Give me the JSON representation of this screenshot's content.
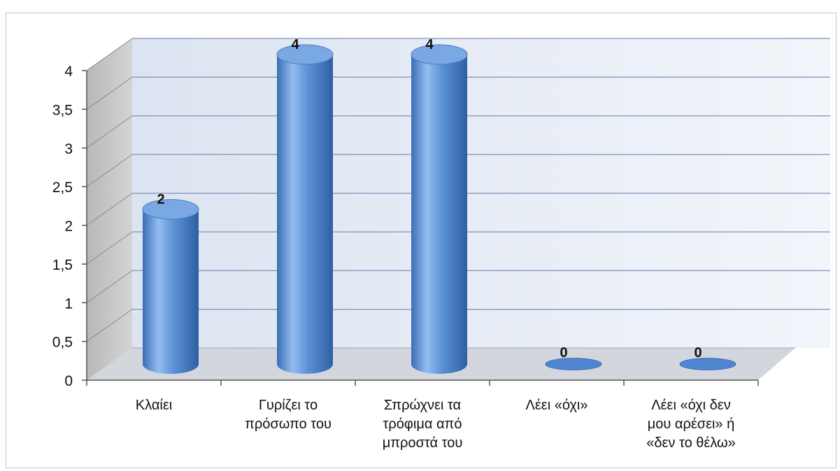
{
  "chart_data": {
    "type": "bar",
    "style": "3d-cylinder",
    "categories": [
      [
        "Κλαίει"
      ],
      [
        "Γυρίζει το",
        "πρόσωπο του"
      ],
      [
        "Σπρώχνει τα",
        "τρόφιμα από",
        "μπροστά του"
      ],
      [
        "Λέει «όχι»"
      ],
      [
        "Λέει «όχι δεν",
        "μου αρέσει» ή",
        "«δεν το θέλω»"
      ]
    ],
    "values": [
      2,
      4,
      4,
      0,
      0
    ],
    "data_labels": [
      "2",
      "4",
      "4",
      "0",
      "0"
    ],
    "ylim": [
      0,
      4
    ],
    "yticks": [
      0,
      0.5,
      1,
      1.5,
      2,
      2.5,
      3,
      3.5,
      4
    ],
    "ytick_labels": [
      "0",
      "0,5",
      "1",
      "1,5",
      "2",
      "2,5",
      "3",
      "3,5",
      "4"
    ],
    "grid": true,
    "legend": "none",
    "colors": {
      "bar": "#4f86cf",
      "bar_dark": "#2f5fa3",
      "bar_light": "#93bdf0",
      "top": "#7aa8e3",
      "wall": "#dfe7f3",
      "side_wall": "#c9c9c9",
      "floor": "#d3d7dd",
      "grid": "#7f93b8"
    }
  }
}
